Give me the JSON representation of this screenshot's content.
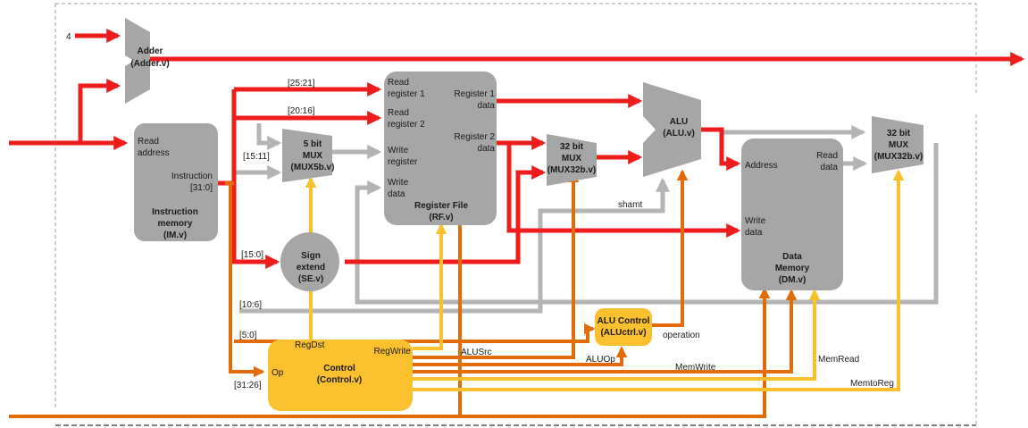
{
  "inputs": {
    "constant_four": "4"
  },
  "blocks": {
    "adder": {
      "title": "Adder",
      "file": "(Adder.v)"
    },
    "instruction_memory": {
      "port_read_address_1": "Read",
      "port_read_address_2": "address",
      "port_instruction_1": "Instruction",
      "port_instruction_2": "[31:0]",
      "title_1": "Instruction",
      "title_2": "memory",
      "file": "(IM.v)"
    },
    "mux5": {
      "title_1": "5 bit",
      "title_2": "MUX",
      "file": "(MUX5b.v)"
    },
    "register_file": {
      "read_register_1_a": "Read",
      "read_register_1_b": "register 1",
      "read_register_2_a": "Read",
      "read_register_2_b": "register 2",
      "write_register_a": "Write",
      "write_register_b": "register",
      "write_data_a": "Write",
      "write_data_b": "data",
      "register_1_data_a": "Register 1",
      "register_1_data_b": "data",
      "register_2_data_a": "Register 2",
      "register_2_data_b": "data",
      "title": "Register File",
      "file": "(RF.v)"
    },
    "sign_extend": {
      "title_1": "Sign",
      "title_2": "extend",
      "file": "(SE.v)"
    },
    "mux32_alu": {
      "title_1": "32 bit",
      "title_2": "MUX",
      "file": "(MUX32b.v)"
    },
    "alu": {
      "title": "ALU",
      "file": "(ALU.v)"
    },
    "data_memory": {
      "address": "Address",
      "write_data_a": "Write",
      "write_data_b": "data",
      "read_data_a": "Read",
      "read_data_b": "data",
      "title_1": "Data",
      "title_2": "Memory",
      "file": "(DM.v)"
    },
    "mux32_wb": {
      "title_1": "32 bit",
      "title_2": "MUX",
      "file": "(MUX32b.v)"
    },
    "alu_control": {
      "title": "ALU Control",
      "file": "(ALUctrl.v)"
    },
    "control": {
      "title": "Control",
      "file": "(Control.v)",
      "op": "Op",
      "regdst": "RegDst",
      "regwrite": "RegWrite"
    }
  },
  "bit_fields": {
    "rs": "[25:21]",
    "rt": "[20:16]",
    "rd": "[15:11]",
    "imm": "[15:0]",
    "shamt_field": "[10:6]",
    "funct": "[5:0]",
    "opcode": "[31:26]"
  },
  "signals": {
    "shamt": "shamt",
    "operation": "operation",
    "alusrc": "ALUSrc",
    "aluop": "ALUOp",
    "memwrite": "MemWrite",
    "memread": "MemRead",
    "memtoreg": "MemtoReg"
  },
  "colors": {
    "datapath_red": "#ee1c1c",
    "control_orange": "#e36c0a",
    "control_yellow": "#fbc02d",
    "feedback_gray": "#b4b4b4",
    "block_gray": "#a6a6a6",
    "control_block": "#fbc02d",
    "border_dash": "#9e9e9e",
    "text": "#1a1a1a"
  }
}
